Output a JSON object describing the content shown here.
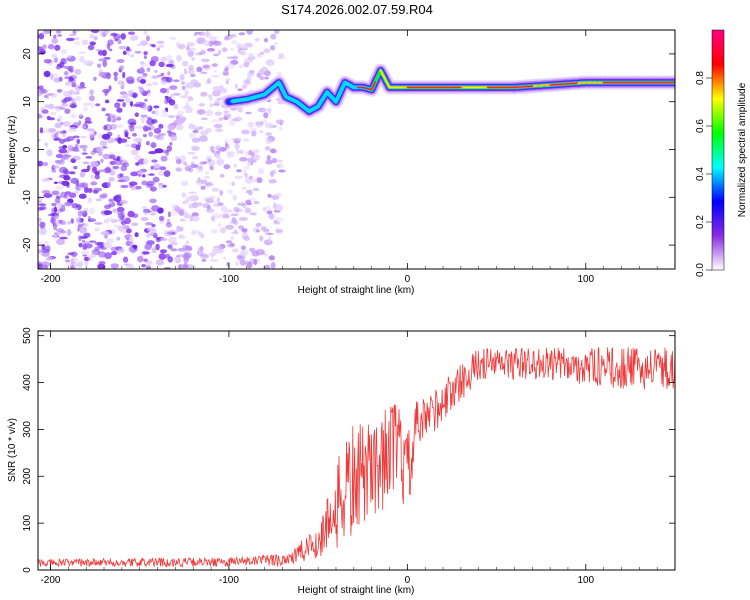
{
  "title": "S174.2026.002.07.59.R04",
  "colors": {
    "snr_line": "#f03a3a",
    "axis": "#000000",
    "scatter_purple": "#7b2cf0"
  },
  "chart_data": [
    {
      "type": "heatmap",
      "name": "spectrogram",
      "xlabel": "Height of straight line (km)",
      "ylabel": "Frequency (Hz)",
      "xlim": [
        -207,
        150
      ],
      "ylim": [
        -25,
        25
      ],
      "xticks": [
        -200,
        -100,
        0,
        100
      ],
      "yticks": [
        -20,
        -10,
        0,
        10,
        20
      ],
      "noise_extent_x": [
        -207,
        -70
      ],
      "signal_track": {
        "x": [
          -100,
          -90,
          -80,
          -72,
          -68,
          -62,
          -55,
          -50,
          -45,
          -40,
          -35,
          -30,
          -25,
          -20,
          -15,
          -10,
          0,
          20,
          40,
          60,
          80,
          100,
          120,
          150
        ],
        "y": [
          10,
          10.5,
          11.5,
          14,
          11,
          10,
          8,
          9,
          12,
          10,
          14,
          13,
          13,
          12.5,
          16.5,
          13,
          13,
          13,
          13,
          13,
          13.5,
          14,
          14,
          14
        ]
      },
      "colorbar": {
        "label": "Normalized spectral amplitude",
        "range": [
          0,
          1
        ],
        "ticks": [
          "0.0",
          "0.2",
          "0.4",
          "0.6",
          "0.8"
        ],
        "stops": [
          "#ffffff",
          "#8a2be2",
          "#0000ff",
          "#00ffff",
          "#00ff00",
          "#ffff00",
          "#ff0000",
          "#ff0080"
        ]
      }
    },
    {
      "type": "line",
      "name": "snr",
      "xlabel": "Height of straight line (km)",
      "ylabel": "SNR (10 * v/v)",
      "xlim": [
        -207,
        150
      ],
      "ylim": [
        0,
        510
      ],
      "xticks": [
        -200,
        -100,
        0,
        100
      ],
      "yticks": [
        0,
        100,
        200,
        300,
        400,
        500
      ],
      "envelope": {
        "x": [
          -207,
          -100,
          -80,
          -70,
          -60,
          -50,
          -45,
          -40,
          -35,
          -30,
          -25,
          -20,
          -15,
          -10,
          -5,
          0,
          5,
          10,
          20,
          30,
          40,
          60,
          80,
          100,
          120,
          150
        ],
        "mean": [
          15,
          17,
          20,
          22,
          35,
          60,
          100,
          130,
          170,
          190,
          200,
          220,
          230,
          260,
          260,
          200,
          300,
          320,
          360,
          400,
          440,
          440,
          440,
          435,
          430,
          430
        ],
        "noise": [
          8,
          10,
          12,
          15,
          25,
          40,
          60,
          90,
          120,
          130,
          110,
          100,
          120,
          90,
          110,
          90,
          60,
          50,
          45,
          40,
          35,
          35,
          35,
          40,
          45,
          45
        ]
      }
    }
  ]
}
